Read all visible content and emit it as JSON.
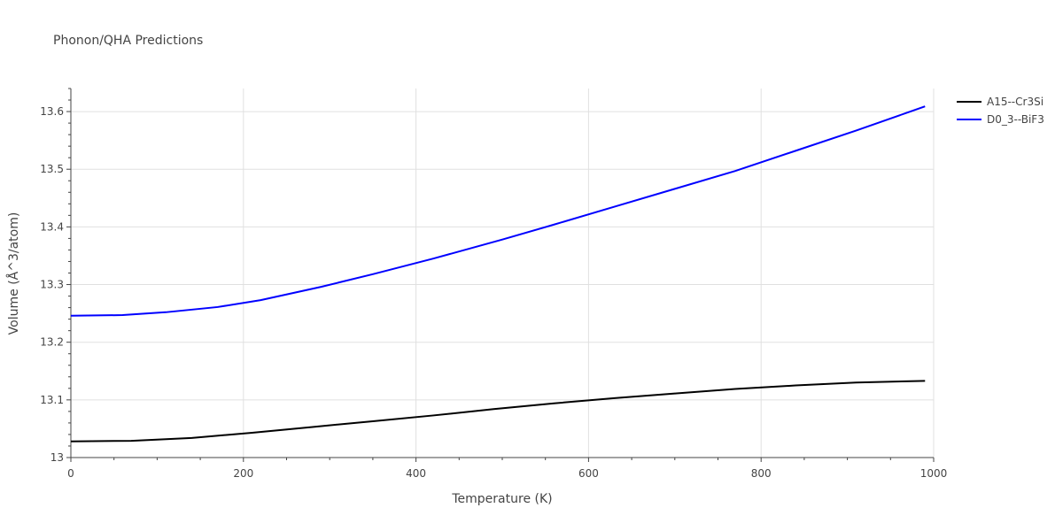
{
  "chart_data": {
    "type": "line",
    "title": "Phonon/QHA Predictions",
    "xlabel": "Temperature (K)",
    "ylabel": "Volume (Å^3/atom)",
    "xlim": [
      0,
      1000
    ],
    "ylim": [
      13.0,
      13.64
    ],
    "x_ticks": [
      0,
      200,
      400,
      600,
      800,
      1000
    ],
    "y_ticks": [
      13.0,
      13.1,
      13.2,
      13.3,
      13.4,
      13.5,
      13.6
    ],
    "x_tick_labels": [
      "0",
      "200",
      "400",
      "600",
      "800",
      "1000"
    ],
    "y_tick_labels": [
      "13",
      "13.1",
      "13.2",
      "13.3",
      "13.4",
      "13.5",
      "13.6"
    ],
    "grid": true,
    "legend_position": "top-right",
    "series": [
      {
        "name": "A15--Cr3Si",
        "color": "#000000",
        "x": [
          0,
          70,
          140,
          210,
          280,
          350,
          420,
          490,
          560,
          630,
          700,
          770,
          840,
          910,
          990
        ],
        "y": [
          13.028,
          13.029,
          13.034,
          13.043,
          13.053,
          13.063,
          13.073,
          13.084,
          13.094,
          13.103,
          13.111,
          13.119,
          13.125,
          13.13,
          13.133
        ]
      },
      {
        "name": "D0_3--BiF3",
        "color": "#0000ff",
        "x": [
          0,
          60,
          110,
          170,
          220,
          290,
          350,
          420,
          500,
          560,
          630,
          700,
          770,
          840,
          910,
          990
        ],
        "y": [
          13.246,
          13.247,
          13.252,
          13.261,
          13.273,
          13.296,
          13.318,
          13.345,
          13.378,
          13.404,
          13.435,
          13.466,
          13.497,
          13.532,
          13.567,
          13.609
        ]
      }
    ]
  }
}
